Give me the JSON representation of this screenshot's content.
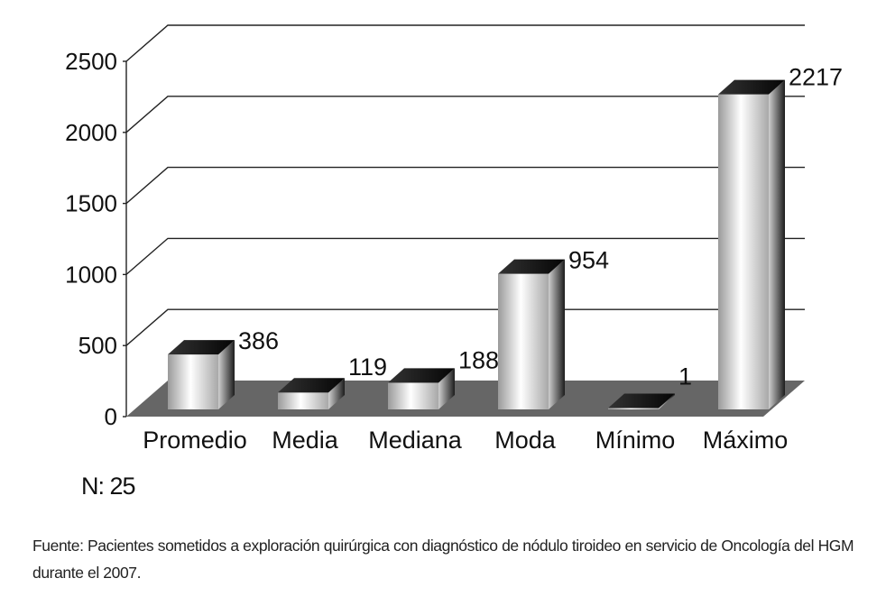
{
  "chart_data": {
    "type": "bar",
    "style": "3d",
    "categories": [
      "Promedio",
      "Media",
      "Mediana",
      "Moda",
      "Mínimo",
      "Máximo"
    ],
    "values": [
      386,
      119,
      188,
      954,
      1,
      2217
    ],
    "data_labels": [
      "386",
      "119",
      "188",
      "954",
      "1",
      "2217"
    ],
    "yticks": [
      "0",
      "500",
      "1000",
      "1500",
      "2000",
      "2500"
    ],
    "ylim": [
      0,
      2500
    ],
    "grid": true,
    "legend": "none"
  },
  "note": "N: 25",
  "source": "Fuente: Pacientes sometidos a exploración quirúrgica con diagnóstico de nódulo tiroideo en servicio de Oncología del HGM durante el 2007.",
  "colors": {
    "floor": "#666666",
    "bar_top": "#1a1a1a",
    "bar_side_dark": "#2b2b2b",
    "grid": "#222222"
  }
}
